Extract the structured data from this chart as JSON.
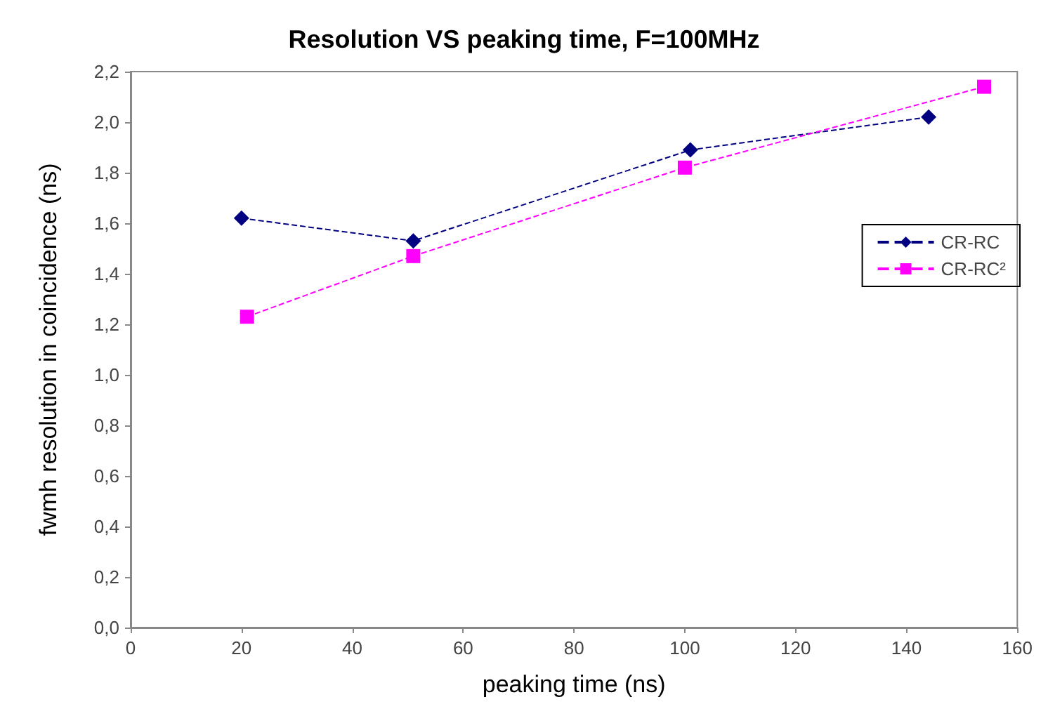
{
  "chart_data": {
    "type": "line",
    "title": "Resolution VS peaking time, F=100MHz",
    "xlabel": "peaking time (ns)",
    "ylabel": "fwmh resolution in coincidence (ns)",
    "xlim": [
      0,
      160
    ],
    "xticks": [
      0,
      20,
      40,
      60,
      80,
      100,
      120,
      140,
      160
    ],
    "ylim": [
      0,
      2.2
    ],
    "yticks": [
      {
        "value": 0,
        "label": "0,0"
      },
      {
        "value": 0.2,
        "label": "0,2"
      },
      {
        "value": 0.4,
        "label": "0,4"
      },
      {
        "value": 0.6,
        "label": "0,6"
      },
      {
        "value": 0.8,
        "label": "0,8"
      },
      {
        "value": 1.0,
        "label": "1,0"
      },
      {
        "value": 1.2,
        "label": "1,2"
      },
      {
        "value": 1.4,
        "label": "1,4"
      },
      {
        "value": 1.6,
        "label": "1,6"
      },
      {
        "value": 1.8,
        "label": "1,8"
      },
      {
        "value": 2.0,
        "label": "2,0"
      },
      {
        "value": 2.2,
        "label": "2,2"
      }
    ],
    "grid": false,
    "legend": "right",
    "line_style": "dashed",
    "series": [
      {
        "name": "CR-RC",
        "color": "#000080",
        "marker": "diamond",
        "x": [
          20,
          51,
          101,
          144
        ],
        "values": [
          1.62,
          1.53,
          1.89,
          2.02
        ]
      },
      {
        "name": "CR-RC²",
        "color": "#ff00ff",
        "marker": "square",
        "x": [
          21,
          51,
          100,
          154
        ],
        "values": [
          1.23,
          1.47,
          1.82,
          2.14
        ]
      }
    ]
  }
}
